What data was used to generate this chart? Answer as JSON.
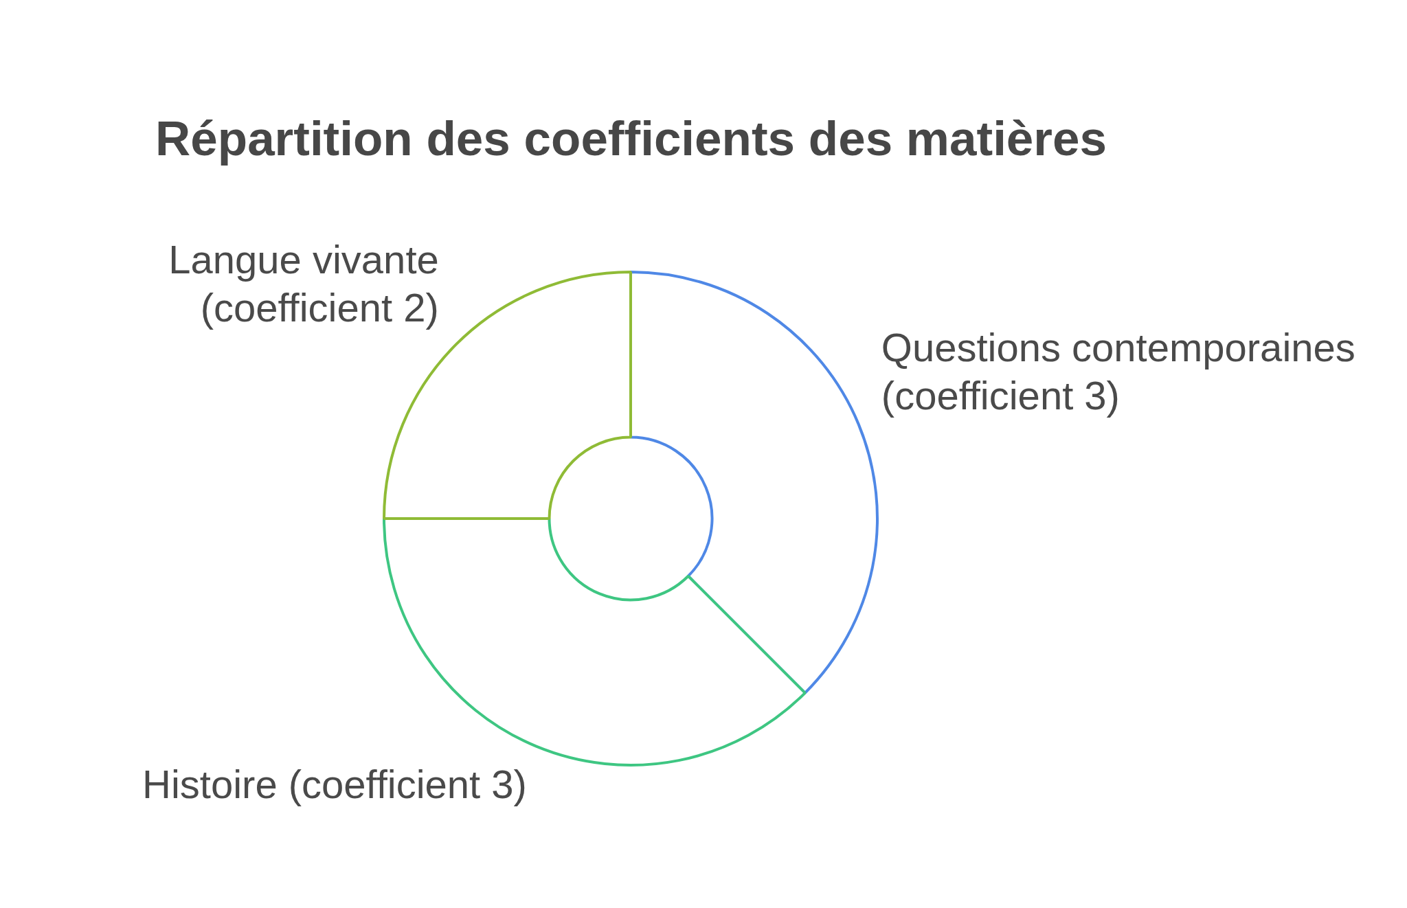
{
  "chart_data": {
    "type": "donut",
    "title": "Répartition des coefficients des matières",
    "categories": [
      "Questions contemporaines (coefficient 3)",
      "Histoire (coefficient 3)",
      "Langue vivante (coefficient 2)"
    ],
    "values": [
      3,
      3,
      2
    ],
    "colors": [
      "#4f88e6",
      "#3ec682",
      "#8fbb36"
    ]
  }
}
